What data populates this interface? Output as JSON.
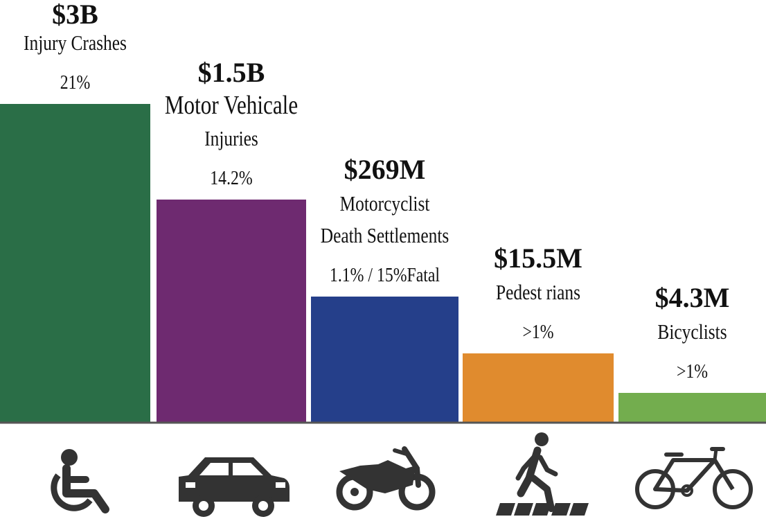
{
  "chart_data": {
    "type": "bar",
    "categories": [
      "Injury Crashes",
      "Motor Vehicale Injuries",
      "Motorcyclist Death Settlements",
      "Pedestrians",
      "Bicyclists"
    ],
    "values": [
      3000000000,
      1500000000,
      269000000,
      15500000,
      4300000
    ],
    "bars": [
      {
        "value_label": "$3B",
        "label_lines": [
          "Injury Crashes"
        ],
        "percent": "21%",
        "color": "#2a6e47",
        "icon": "wheelchair-icon"
      },
      {
        "value_label": "$1.5B",
        "label_lines": [
          "Motor  Vehicale",
          "Injuries"
        ],
        "percent": "14.2%",
        "color": "#6e2a70",
        "icon": "car-icon"
      },
      {
        "value_label": "$269M",
        "label_lines": [
          "Motorcyclist",
          "Death  Settlements"
        ],
        "percent": "1.1% / 15%Fatal",
        "color": "#253f8a",
        "icon": "motorcycle-icon"
      },
      {
        "value_label": "$15.5M",
        "label_lines": [
          "Pedest rians"
        ],
        "percent": ">1%",
        "color": "#e08b2e",
        "icon": "pedestrian-icon"
      },
      {
        "value_label": "$4.3M",
        "label_lines": [
          "Bicyclists"
        ],
        "percent": ">1%",
        "color": "#73ad4e",
        "icon": "bicycle-icon"
      }
    ],
    "baseline_color": "#555555",
    "icon_color": "#333333"
  }
}
